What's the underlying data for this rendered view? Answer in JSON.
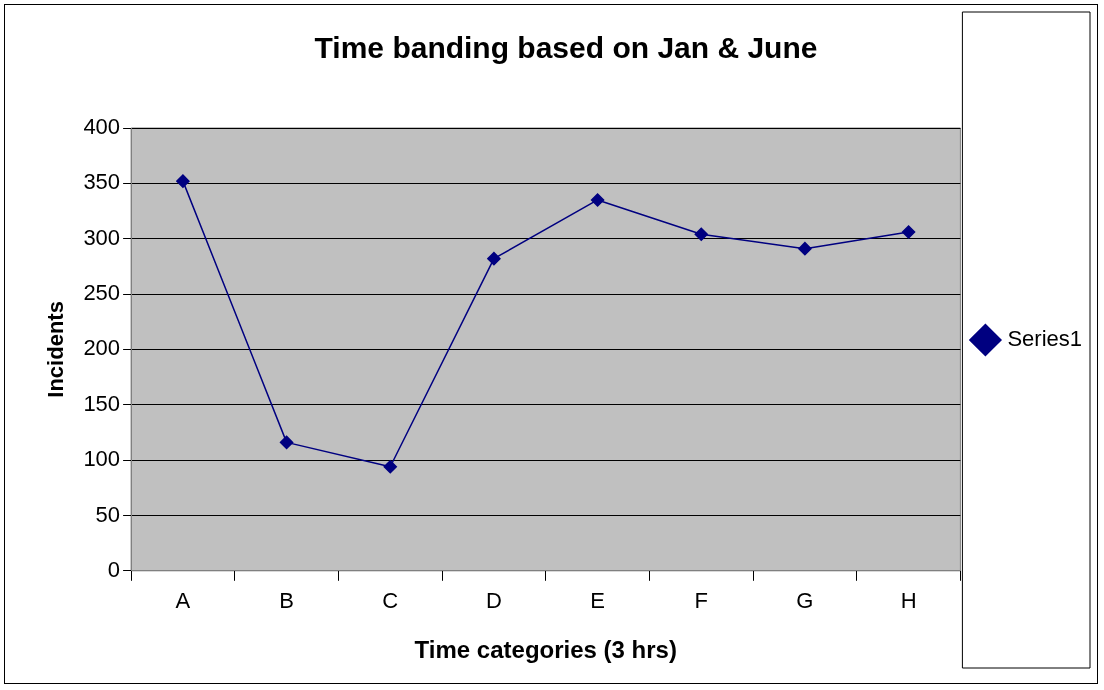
{
  "chart_data": {
    "type": "line",
    "title": "Time banding based on Jan & June",
    "xlabel": "Time categories (3 hrs)",
    "ylabel": "Incidents",
    "categories": [
      "A",
      "B",
      "C",
      "D",
      "E",
      "F",
      "G",
      "H"
    ],
    "series": [
      {
        "name": "Series1",
        "color": "#000080",
        "values": [
          352,
          116,
          94,
          282,
          335,
          304,
          291,
          306
        ]
      }
    ],
    "ylim": [
      0,
      400
    ],
    "yticks": [
      0,
      50,
      100,
      150,
      200,
      250,
      300,
      350,
      400
    ],
    "grid": "y",
    "legend": "right",
    "marker": "diamond",
    "line_style": "solid"
  }
}
